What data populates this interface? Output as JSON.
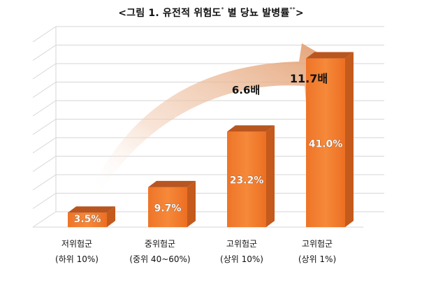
{
  "title": {
    "prefix": "<그림 1. 유전적 위험도",
    "mark1": "*",
    "middle": " 별 당뇨 발병률",
    "mark2": "**",
    "suffix": ">"
  },
  "chart_data": {
    "type": "bar",
    "categories": [
      {
        "name": "저위험군",
        "sub": "(하위 10%)"
      },
      {
        "name": "중위험군",
        "sub": "(중위 40~60%)"
      },
      {
        "name": "고위험군",
        "sub": "(상위 10%)"
      },
      {
        "name": "고위험군",
        "sub": "(상위 1%)"
      }
    ],
    "values": [
      3.5,
      9.7,
      23.2,
      41.0
    ],
    "value_labels": [
      "3.5%",
      "9.7%",
      "23.2%",
      "41.0%"
    ],
    "ylim": [
      0,
      45
    ],
    "grid": true,
    "annotations": [
      {
        "text": "6.6배"
      },
      {
        "text": "11.7배"
      }
    ],
    "colors": {
      "bar_front": "#f07a2a",
      "bar_top": "#b9551f",
      "bar_side": "#c45a1c",
      "arrow": "#e8a880"
    }
  }
}
